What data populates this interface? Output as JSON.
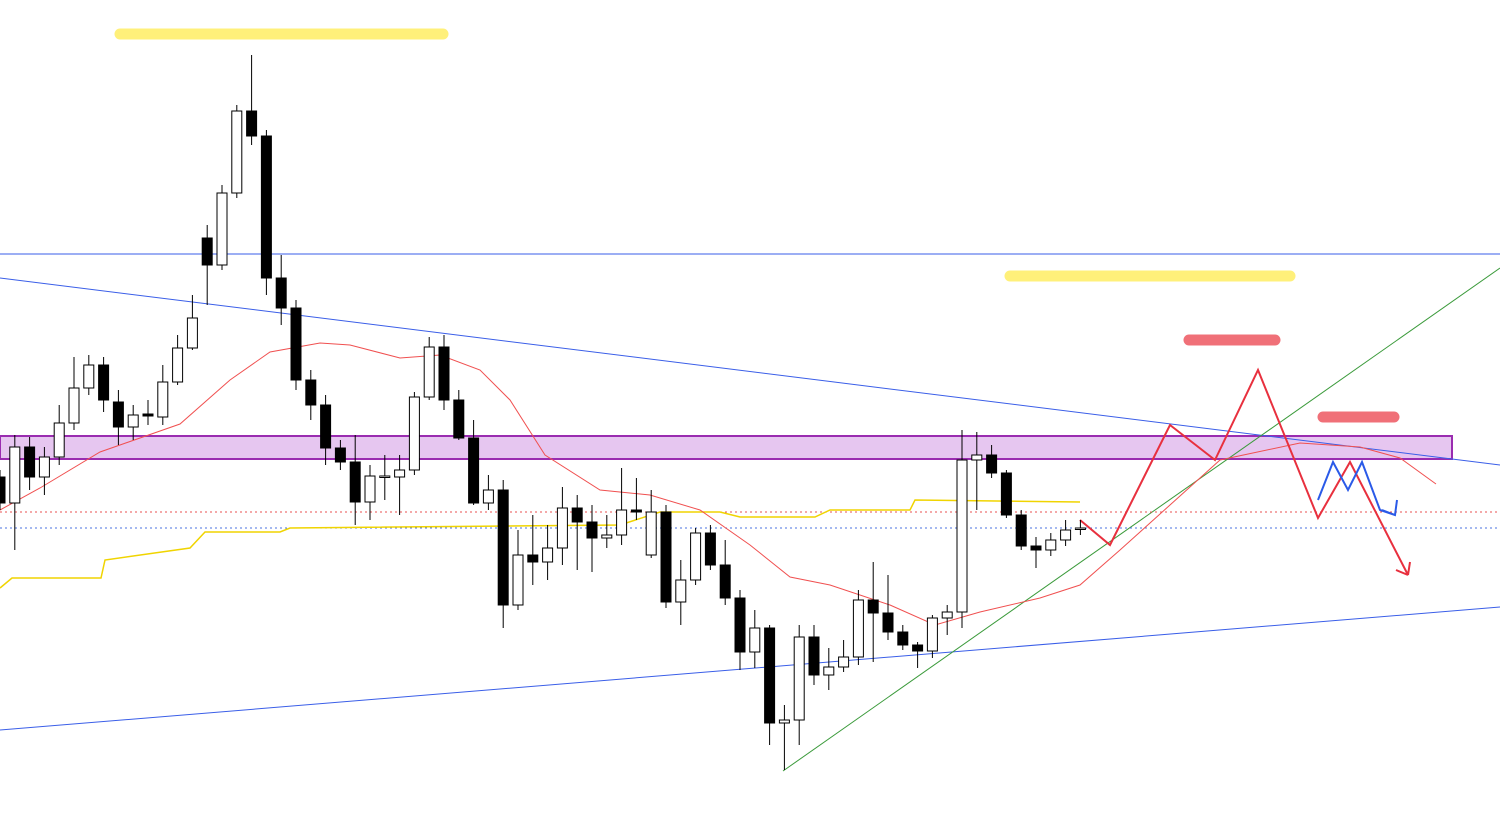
{
  "chart_data": {
    "type": "candlestick",
    "open": [
      347,
      321,
      377,
      347,
      367,
      401,
      436,
      459,
      422,
      397,
      410,
      407,
      442,
      476,
      586,
      559,
      631,
      713,
      688,
      546,
      516,
      444,
      419,
      376,
      362,
      322,
      347,
      347,
      354,
      427,
      477,
      424,
      386,
      321,
      334,
      219,
      269,
      262,
      276,
      316,
      302,
      286,
      289,
      314,
      269,
      312,
      222,
      244,
      291,
      259,
      226,
      172,
      196,
      101,
      104,
      187,
      149,
      157,
      167,
      224,
      211,
      192,
      179,
      173,
      206,
      212,
      364,
      369,
      351,
      309,
      278,
      274,
      284,
      295
    ],
    "high": [
      354,
      389,
      387,
      377,
      419,
      467,
      469,
      467,
      434,
      419,
      424,
      459,
      489,
      529,
      599,
      639,
      719,
      769,
      694,
      569,
      524,
      454,
      429,
      384,
      389,
      359,
      369,
      369,
      432,
      487,
      489,
      434,
      404,
      349,
      344,
      294,
      309,
      299,
      337,
      329,
      319,
      309,
      356,
      346,
      334,
      319,
      264,
      296,
      299,
      284,
      234,
      214,
      199,
      119,
      199,
      199,
      176,
      184,
      234,
      262,
      249,
      199,
      182,
      209,
      219,
      394,
      392,
      379,
      354,
      314,
      287,
      291,
      304,
      304
    ],
    "low": [
      314,
      274,
      334,
      329,
      359,
      394,
      429,
      412,
      379,
      384,
      399,
      399,
      439,
      474,
      519,
      554,
      626,
      679,
      529,
      499,
      434,
      404,
      359,
      354,
      299,
      304,
      324,
      309,
      349,
      424,
      414,
      384,
      319,
      314,
      196,
      214,
      239,
      244,
      259,
      254,
      252,
      276,
      279,
      304,
      266,
      216,
      199,
      239,
      254,
      219,
      154,
      156,
      79,
      54,
      79,
      139,
      134,
      152,
      159,
      162,
      184,
      174,
      156,
      166,
      189,
      196,
      314,
      346,
      306,
      274,
      256,
      268,
      278,
      289
    ],
    "close": [
      321,
      377,
      347,
      367,
      401,
      436,
      459,
      424,
      397,
      409,
      408,
      442,
      476,
      506,
      559,
      631,
      713,
      688,
      546,
      516,
      444,
      419,
      376,
      362,
      322,
      348,
      348,
      354,
      427,
      477,
      424,
      386,
      321,
      334,
      219,
      269,
      262,
      276,
      316,
      302,
      286,
      289,
      314,
      312,
      312,
      222,
      244,
      291,
      259,
      226,
      172,
      196,
      101,
      104,
      187,
      149,
      157,
      167,
      224,
      211,
      192,
      179,
      173,
      206,
      212,
      364,
      369,
      351,
      309,
      278,
      274,
      284,
      294,
      296
    ],
    "ylim": [
      0,
      824
    ],
    "up_color": "#ffffff",
    "down_color": "#000000"
  }
}
